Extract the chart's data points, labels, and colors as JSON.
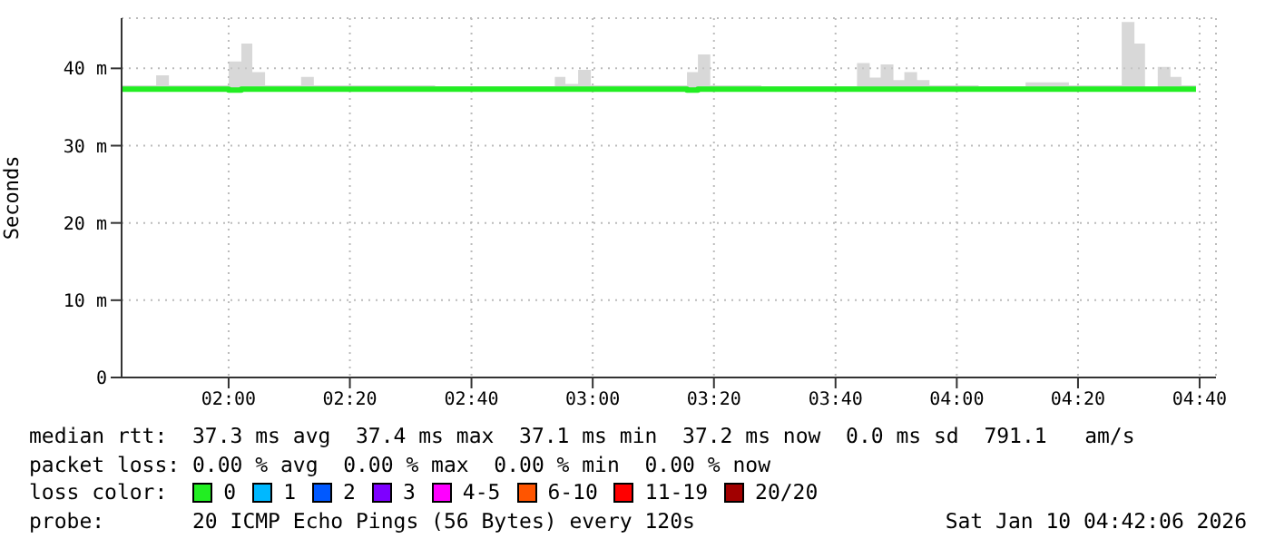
{
  "chart_data": {
    "type": "line",
    "ylabel": "Seconds",
    "legend_title": "loss color:",
    "legend": "bottom",
    "grid": true,
    "marker": "none",
    "line_style": "solid",
    "xlim": [
      1.706,
      4.712
    ],
    "xticks": [
      {
        "value": 2,
        "label": "02:00"
      },
      {
        "value": 2.333,
        "label": "02:20"
      },
      {
        "value": 2.667,
        "label": "02:40"
      },
      {
        "value": 3,
        "label": "03:00"
      },
      {
        "value": 3.333,
        "label": "03:20"
      },
      {
        "value": 3.667,
        "label": "03:40"
      },
      {
        "value": 4,
        "label": "04:00"
      },
      {
        "value": 4.333,
        "label": "04:20"
      },
      {
        "value": 4.667,
        "label": "04:40"
      }
    ],
    "ylim": [
      0,
      46.5
    ],
    "yticks": [
      0,
      {
        "value": 10,
        "label": "10 m"
      },
      {
        "value": 20,
        "label": "20 m"
      },
      {
        "value": 30,
        "label": "30 m"
      },
      {
        "value": 40,
        "label": "40 m"
      }
    ],
    "series": [
      {
        "name": "0",
        "color": "#22ee22",
        "x": [
          1.706,
          1.801,
          1.836,
          1.92,
          2.0,
          2.035,
          2.065,
          2.1,
          2.199,
          2.234,
          2.368,
          2.567,
          2.766,
          2.896,
          2.925,
          2.96,
          2.995,
          3.114,
          3.224,
          3.259,
          3.289,
          3.323,
          3.463,
          3.612,
          3.726,
          3.761,
          3.791,
          3.826,
          3.856,
          3.891,
          3.925,
          4.06,
          4.189,
          4.308,
          4.418,
          4.453,
          4.488,
          4.517,
          4.552,
          4.587,
          4.617,
          4.657
        ],
        "values": [
          37.3,
          37.3,
          37.3,
          37.3,
          37.2,
          37.3,
          37.3,
          37.3,
          37.3,
          37.3,
          37.3,
          37.3,
          37.3,
          37.3,
          37.3,
          37.3,
          37.3,
          37.3,
          37.3,
          37.2,
          37.3,
          37.3,
          37.3,
          37.3,
          37.3,
          37.3,
          37.3,
          37.3,
          37.3,
          37.3,
          37.3,
          37.3,
          37.3,
          37.3,
          37.3,
          37.3,
          37.3,
          37.3,
          37.3,
          37.3,
          37.3,
          37.3
        ],
        "lower": [
          37.0,
          37.0,
          37.0,
          37.0,
          37.0,
          37.0,
          37.0,
          37.0,
          37.0,
          37.0,
          37.0,
          37.0,
          37.0,
          37.0,
          37.0,
          37.0,
          37.0,
          37.0,
          37.0,
          37.0,
          37.0,
          37.0,
          37.0,
          37.0,
          37.0,
          37.0,
          37.0,
          37.0,
          37.0,
          37.0,
          37.0,
          37.0,
          37.0,
          37.0,
          37.0,
          37.0,
          37.0,
          37.0,
          37.0,
          37.0,
          37.0,
          37.0
        ],
        "upper": [
          37.8,
          39.1,
          37.8,
          37.8,
          40.9,
          43.2,
          39.5,
          37.8,
          38.9,
          37.8,
          37.8,
          37.7,
          37.7,
          38.9,
          38.0,
          39.8,
          37.8,
          37.8,
          37.8,
          39.5,
          41.8,
          37.8,
          37.7,
          37.7,
          40.7,
          38.8,
          40.5,
          38.5,
          39.5,
          38.5,
          37.8,
          37.7,
          38.2,
          37.8,
          37.8,
          46.0,
          43.2,
          37.6,
          40.2,
          38.9,
          37.8,
          37.8
        ]
      },
      {
        "name": "1",
        "color": "#00b8ff"
      },
      {
        "name": "2",
        "color": "#0059ff"
      },
      {
        "name": "3",
        "color": "#7e00ff"
      },
      {
        "name": "4-5",
        "color": "#ff00ff"
      },
      {
        "name": "6-10",
        "color": "#ff5500"
      },
      {
        "name": "11-19",
        "color": "#ff0000"
      },
      {
        "name": "20/20",
        "color": "#a10000"
      }
    ],
    "annotations": [
      "median rtt:  37.3 ms avg  37.4 ms max  37.1 ms min  37.2 ms now  0.0 ms sd  791.1   am/s",
      "packet loss: 0.00 % avg  0.00 % max  0.00 % min  0.00 % now",
      "probe:       20 ICMP Echo Pings (56 Bytes) every 120s",
      "Sat Jan 10 04:42:06 2026"
    ]
  }
}
